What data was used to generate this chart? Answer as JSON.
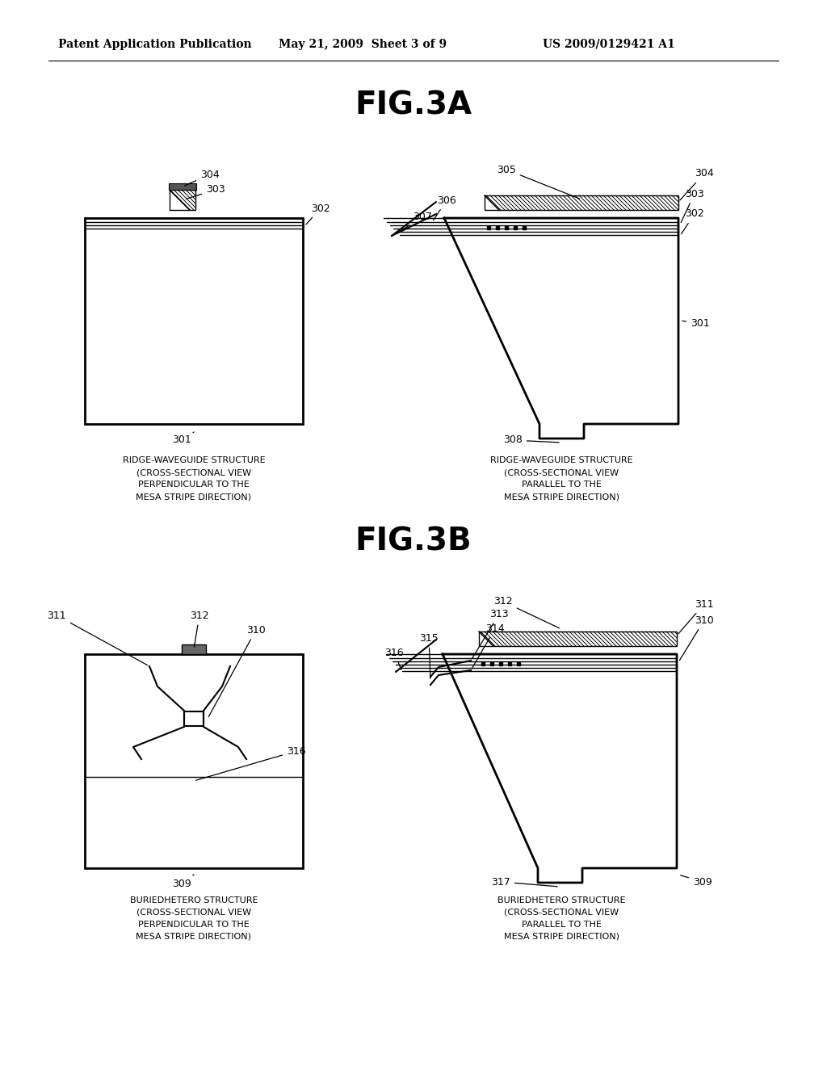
{
  "bg_color": "#ffffff",
  "line_color": "#000000",
  "header_text1": "Patent Application Publication",
  "header_text2": "May 21, 2009  Sheet 3 of 9",
  "header_text3": "US 2009/0129421 A1",
  "fig3a_title": "FIG.3A",
  "fig3b_title": "FIG.3B",
  "caption_3a_left": [
    "RIDGE-WAVEGUIDE STRUCTURE",
    "(CROSS-SECTIONAL VIEW",
    "PERPENDICULAR TO THE",
    "MESA STRIPE DIRECTION)"
  ],
  "caption_3a_right": [
    "RIDGE-WAVEGUIDE STRUCTURE",
    "(CROSS-SECTIONAL VIEW",
    "PARALLEL TO THE",
    "MESA STRIPE DIRECTION)"
  ],
  "caption_3b_left": [
    "BURIEDHETERO STRUCTURE",
    "(CROSS-SECTIONAL VIEW",
    "PERPENDICULAR TO THE",
    "MESA STRIPE DIRECTION)"
  ],
  "caption_3b_right": [
    "BURIEDHETERO STRUCTURE",
    "(CROSS-SECTIONAL VIEW",
    "PARALLEL TO THE",
    "MESA STRIPE DIRECTION)"
  ]
}
